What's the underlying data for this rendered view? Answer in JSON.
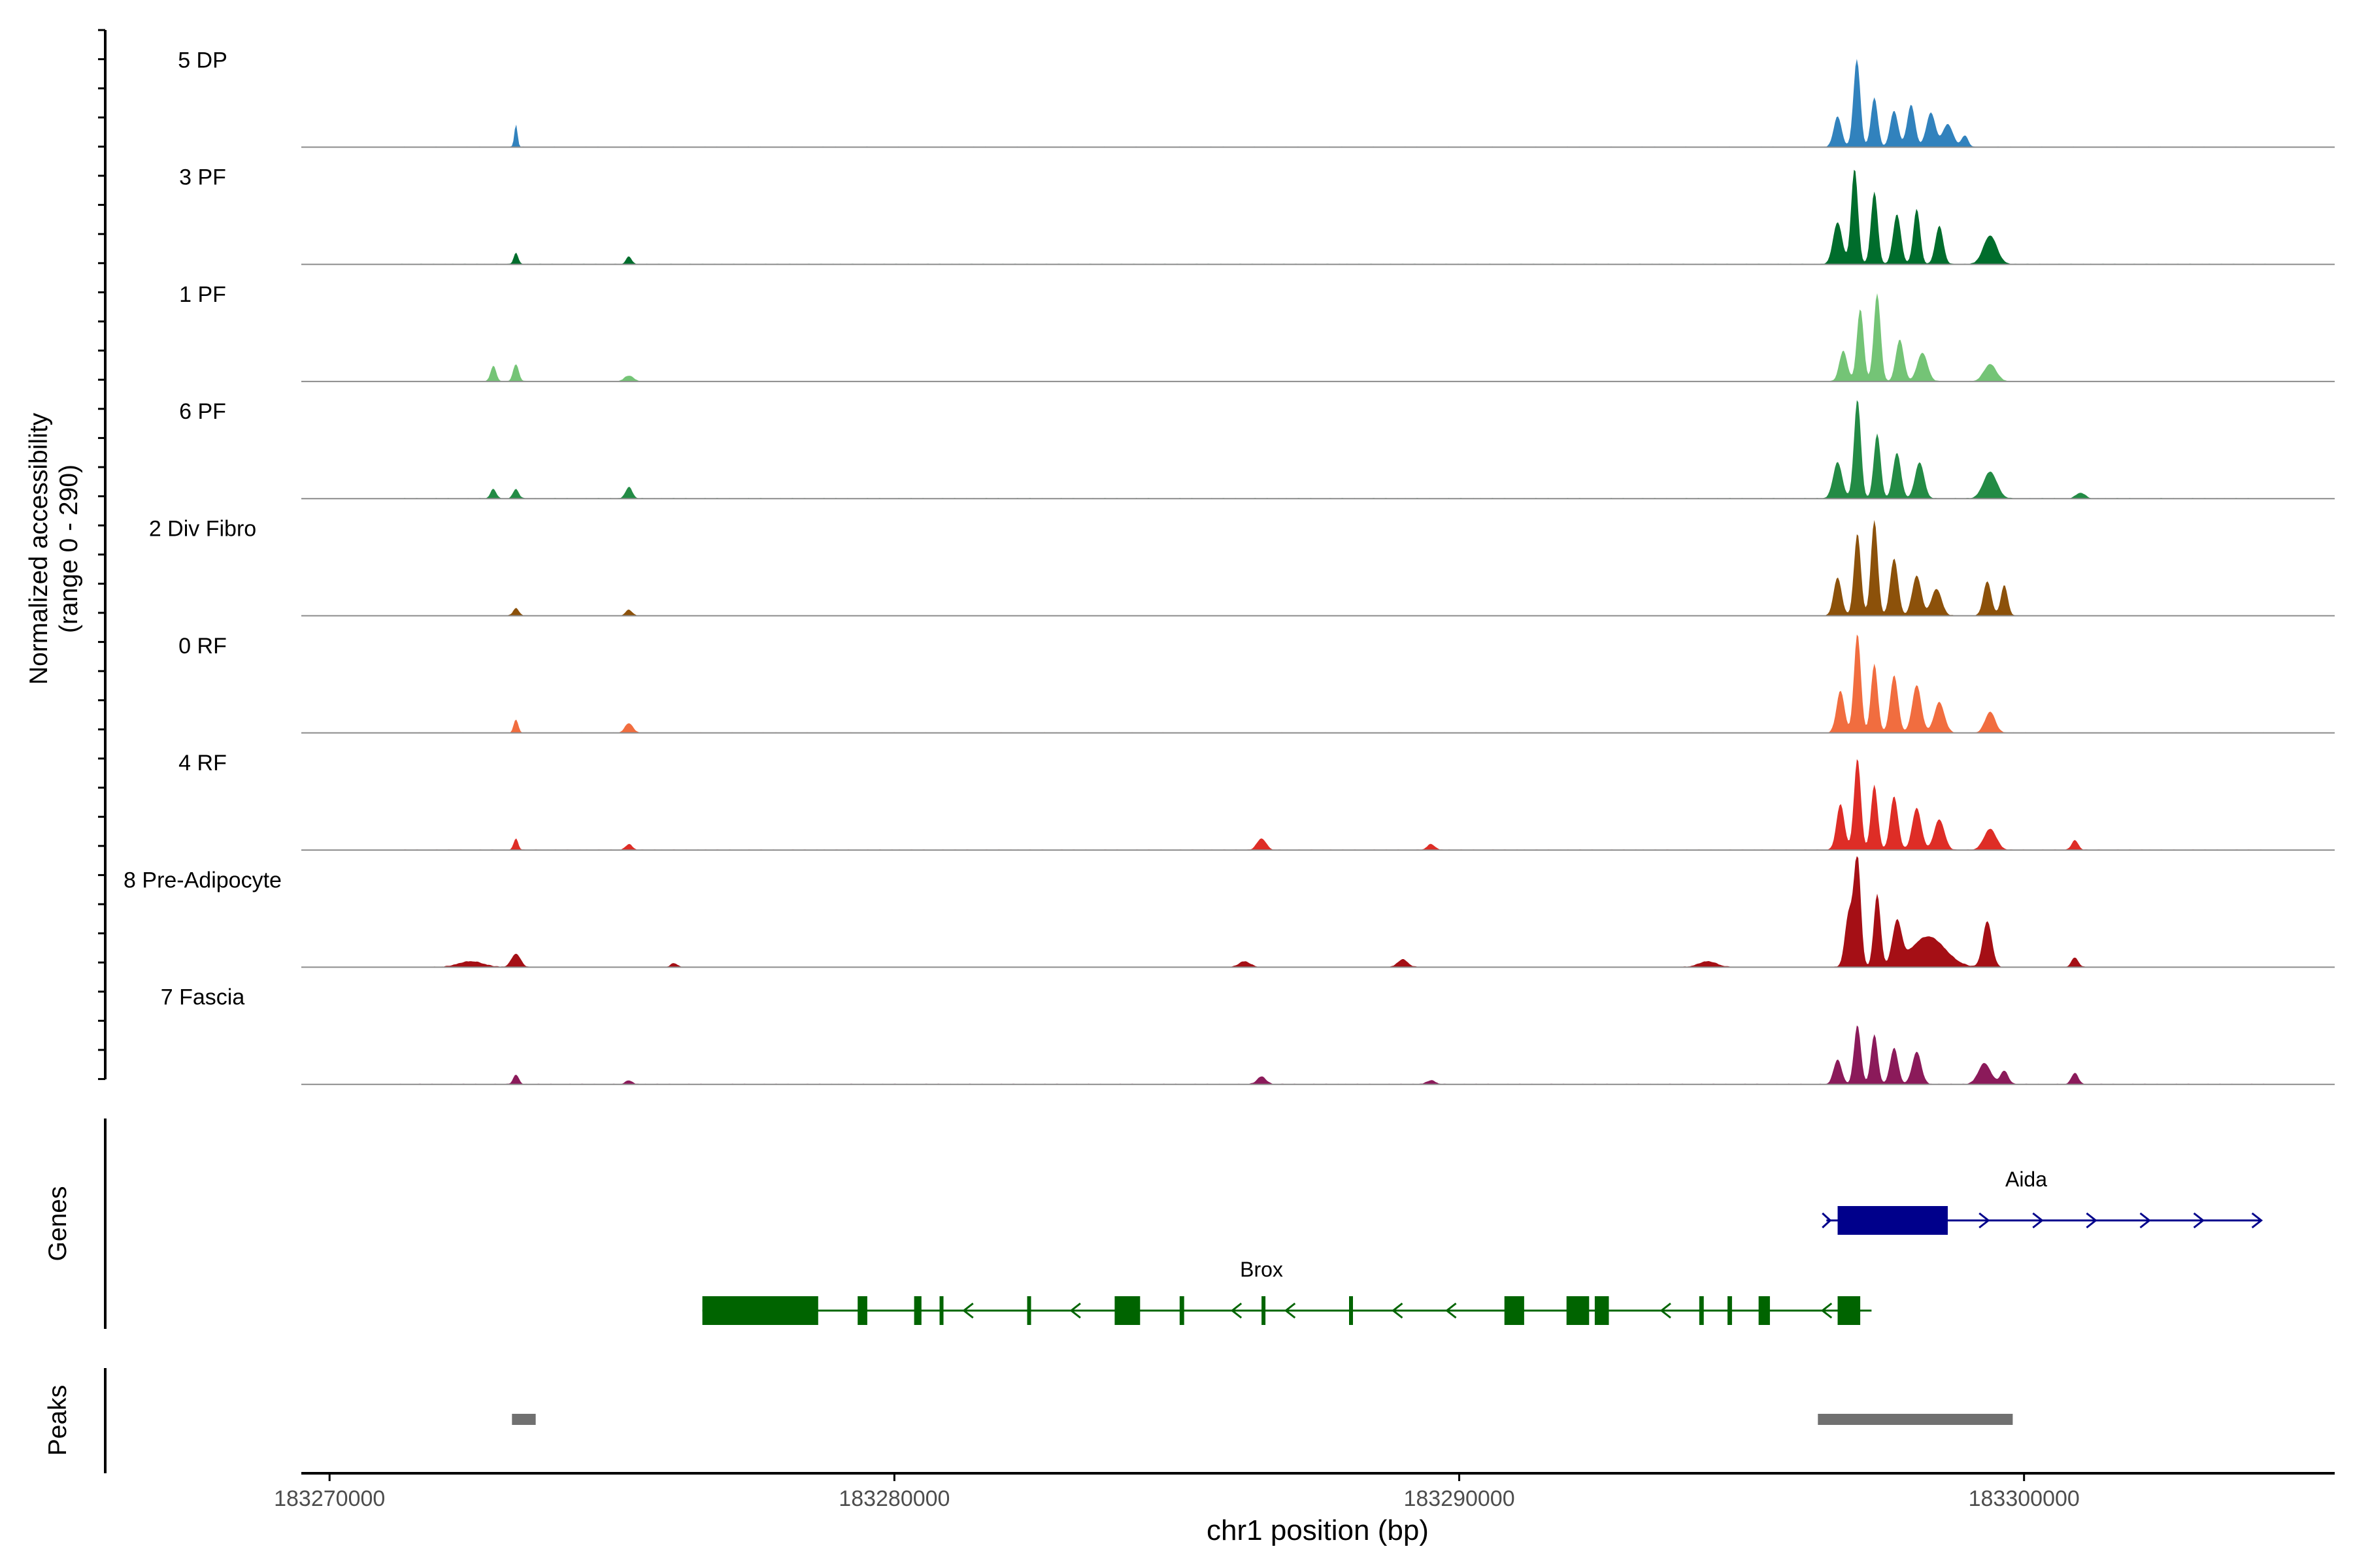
{
  "chart_data": {
    "type": "area",
    "title": "",
    "ylabel_line1": "Normalized accessibility",
    "ylabel_line2": "(range 0 - 290)",
    "xlabel": "chr1 position (bp)",
    "xlim": [
      183269500,
      183305500
    ],
    "ylim": [
      0,
      290
    ],
    "x_ticks": [
      183270000,
      183280000,
      183290000,
      183300000
    ],
    "x_tick_labels": [
      "183270000",
      "183280000",
      "183290000",
      "183300000"
    ],
    "genes_label": "Genes",
    "peaks_label": "Peaks",
    "tracks": [
      {
        "name": "5 DP",
        "color": "#3182bd",
        "peaks": [
          [
            183273300,
            60,
            28
          ],
          [
            183296700,
            80,
            70
          ],
          [
            183297040,
            230,
            60
          ],
          [
            183297350,
            130,
            60
          ],
          [
            183297700,
            95,
            70
          ],
          [
            183298000,
            110,
            70
          ],
          [
            183298350,
            90,
            80
          ],
          [
            183298650,
            60,
            90
          ],
          [
            183298950,
            30,
            60
          ]
        ]
      },
      {
        "name": "3 PF",
        "color": "#006d2c",
        "peaks": [
          [
            183273300,
            30,
            40
          ],
          [
            183275300,
            20,
            50
          ],
          [
            183296700,
            110,
            80
          ],
          [
            183297000,
            250,
            60
          ],
          [
            183297350,
            190,
            60
          ],
          [
            183297750,
            130,
            70
          ],
          [
            183298100,
            145,
            60
          ],
          [
            183298500,
            100,
            70
          ],
          [
            183299400,
            75,
            120
          ]
        ]
      },
      {
        "name": "1 PF",
        "color": "#74c476",
        "peaks": [
          [
            183272900,
            40,
            50
          ],
          [
            183273300,
            45,
            50
          ],
          [
            183275300,
            15,
            80
          ],
          [
            183296800,
            80,
            70
          ],
          [
            183297100,
            190,
            60
          ],
          [
            183297400,
            230,
            60
          ],
          [
            183297800,
            110,
            70
          ],
          [
            183298200,
            75,
            90
          ],
          [
            183299400,
            45,
            110
          ]
        ]
      },
      {
        "name": "6 PF",
        "color": "#238b45",
        "peaks": [
          [
            183272900,
            25,
            50
          ],
          [
            183273300,
            25,
            50
          ],
          [
            183275300,
            30,
            60
          ],
          [
            183296700,
            95,
            80
          ],
          [
            183297050,
            260,
            60
          ],
          [
            183297400,
            170,
            60
          ],
          [
            183297750,
            120,
            70
          ],
          [
            183298150,
            95,
            80
          ],
          [
            183299400,
            70,
            120
          ],
          [
            183301000,
            15,
            80
          ]
        ]
      },
      {
        "name": "2 Div Fibro",
        "color": "#8c510a",
        "peaks": [
          [
            183273300,
            20,
            50
          ],
          [
            183275300,
            15,
            60
          ],
          [
            183296700,
            100,
            70
          ],
          [
            183297050,
            215,
            60
          ],
          [
            183297350,
            250,
            60
          ],
          [
            183297700,
            150,
            70
          ],
          [
            183298100,
            105,
            80
          ],
          [
            183298450,
            70,
            90
          ],
          [
            183299350,
            90,
            70
          ],
          [
            183299650,
            80,
            60
          ]
        ]
      },
      {
        "name": "0 RF",
        "color": "#f16d3f",
        "peaks": [
          [
            183273300,
            35,
            40
          ],
          [
            183275300,
            25,
            70
          ],
          [
            183296750,
            110,
            70
          ],
          [
            183297050,
            260,
            60
          ],
          [
            183297350,
            180,
            60
          ],
          [
            183297700,
            150,
            70
          ],
          [
            183298100,
            125,
            80
          ],
          [
            183298500,
            80,
            90
          ],
          [
            183299400,
            55,
            90
          ]
        ]
      },
      {
        "name": "4 RF",
        "color": "#de2d26",
        "peaks": [
          [
            183273300,
            30,
            40
          ],
          [
            183275300,
            15,
            60
          ],
          [
            183286500,
            30,
            80
          ],
          [
            183289500,
            15,
            70
          ],
          [
            183296750,
            120,
            70
          ],
          [
            183297050,
            240,
            60
          ],
          [
            183297350,
            170,
            60
          ],
          [
            183297700,
            140,
            70
          ],
          [
            183298100,
            110,
            80
          ],
          [
            183298500,
            80,
            90
          ],
          [
            183299400,
            55,
            110
          ],
          [
            183300900,
            25,
            60
          ]
        ]
      },
      {
        "name": "8 Pre-Adipocyte",
        "color": "#a50f15",
        "peaks": [
          [
            183272500,
            15,
            220
          ],
          [
            183273300,
            35,
            80
          ],
          [
            183276100,
            10,
            60
          ],
          [
            183286200,
            15,
            100
          ],
          [
            183289000,
            20,
            90
          ],
          [
            183294400,
            15,
            160
          ],
          [
            183296900,
            140,
            70
          ],
          [
            183297050,
            285,
            60
          ],
          [
            183297400,
            190,
            60
          ],
          [
            183297750,
            110,
            80
          ],
          [
            183298300,
            80,
            300
          ],
          [
            183299350,
            120,
            80
          ],
          [
            183300900,
            25,
            60
          ]
        ]
      },
      {
        "name": "7 Fascia",
        "color": "#8b1a5a",
        "peaks": [
          [
            183273300,
            25,
            50
          ],
          [
            183275300,
            10,
            60
          ],
          [
            183286500,
            20,
            80
          ],
          [
            183289500,
            10,
            80
          ],
          [
            183296700,
            65,
            70
          ],
          [
            183297050,
            155,
            60
          ],
          [
            183297350,
            130,
            60
          ],
          [
            183297700,
            95,
            70
          ],
          [
            183298100,
            85,
            80
          ],
          [
            183299300,
            55,
            110
          ],
          [
            183299650,
            35,
            70
          ],
          [
            183300900,
            30,
            60
          ]
        ]
      }
    ],
    "genes": [
      {
        "name": "Aida",
        "strand": "+",
        "color": "#00008b",
        "start": 183296500,
        "end": 183304200,
        "exons": [
          [
            183296700,
            183298650
          ]
        ]
      },
      {
        "name": "Brox",
        "strand": "-",
        "color": "#006400",
        "start": 183276600,
        "end": 183297300,
        "exons": [
          [
            183276600,
            183278650
          ],
          [
            183279350,
            183279520
          ],
          [
            183280350,
            183280480
          ],
          [
            183280800,
            183280870
          ],
          [
            183282350,
            183282420
          ],
          [
            183283900,
            183284350
          ],
          [
            183285050,
            183285130
          ],
          [
            183286500,
            183286570
          ],
          [
            183288050,
            183288120
          ],
          [
            183290800,
            183291150
          ],
          [
            183291900,
            183292300
          ],
          [
            183292400,
            183292650
          ],
          [
            183294250,
            183294330
          ],
          [
            183294750,
            183294830
          ],
          [
            183295300,
            183295500
          ],
          [
            183296700,
            183297100
          ]
        ]
      }
    ],
    "peaks": [
      [
        183273230,
        183273650
      ],
      [
        183296350,
        183299800
      ]
    ]
  }
}
